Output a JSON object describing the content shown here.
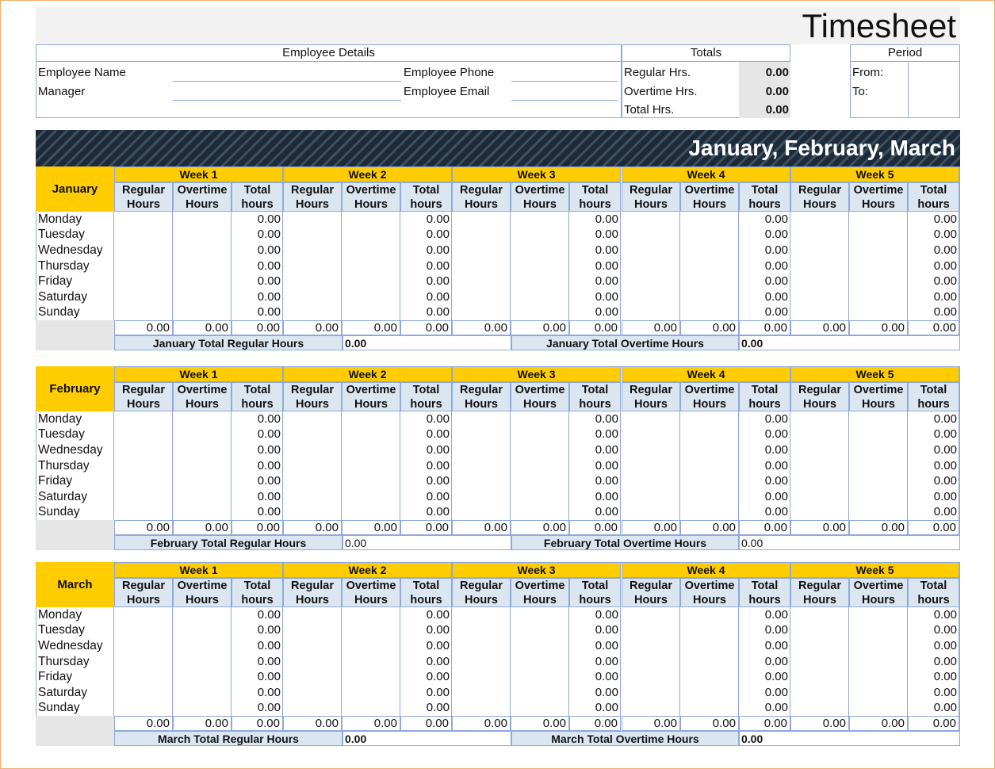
{
  "header": {
    "title": "Timesheet",
    "employee_details": {
      "heading": "Employee Details",
      "fields": [
        "Employee Name",
        "Employee Phone",
        "Manager",
        "Employee Email"
      ]
    },
    "totals": {
      "heading": "Totals",
      "rows": [
        {
          "label": "Regular Hrs.",
          "value": "0.00"
        },
        {
          "label": "Overtime Hrs.",
          "value": "0.00"
        },
        {
          "label": "Total Hrs.",
          "value": "0.00"
        }
      ]
    },
    "period": {
      "heading": "Period",
      "rows": [
        "From:",
        "To:"
      ]
    }
  },
  "banner": "January, February, March",
  "months": [
    {
      "name": "January",
      "weeks": [
        "Week 1",
        "Week 2",
        "Week 3",
        "Week 4",
        "Week 5"
      ],
      "columns": [
        [
          "Regular Hours",
          "Overtime Hours",
          "Total hours"
        ],
        [
          "Regular Hours",
          "Overtime Hours",
          "Total hours"
        ],
        [
          "Regular Hours",
          "Overtime Hours",
          "Total hours"
        ],
        [
          "Regular Hours",
          "Overtime Hours",
          "Total hours"
        ],
        [
          "Regular Hours",
          "Overtime Hours",
          "Total hours"
        ]
      ],
      "days": [
        "Monday",
        "Tuesday",
        "Wednesday",
        "Thursday",
        "Friday",
        "Saturday",
        "Sunday"
      ],
      "daily_totals": [
        [
          "0.00",
          "0.00",
          "0.00",
          "0.00",
          "0.00",
          "0.00",
          "0.00"
        ],
        [
          "0.00",
          "0.00",
          "0.00",
          "0.00",
          "0.00",
          "0.00",
          "0.00"
        ],
        [
          "0.00",
          "0.00",
          "0.00",
          "0.00",
          "0.00",
          "0.00",
          "0.00"
        ],
        [
          "0.00",
          "0.00",
          "0.00",
          "0.00",
          "0.00",
          "0.00",
          "0.00"
        ],
        [
          "0.00",
          "0.00",
          "0.00",
          "0.00",
          "0.00",
          "0.00",
          "0.00"
        ]
      ],
      "week_sums": [
        [
          "0.00",
          "0.00",
          "0.00"
        ],
        [
          "0.00",
          "0.00",
          "0.00"
        ],
        [
          "0.00",
          "0.00",
          "0.00"
        ],
        [
          "0.00",
          "0.00",
          "0.00"
        ],
        [
          "0.00",
          "0.00",
          "0.00"
        ]
      ],
      "regular_total_label": "January Total Regular Hours",
      "regular_total": "0.00",
      "overtime_total_label": "January Total Overtime Hours",
      "overtime_total": "0.00"
    },
    {
      "name": "February",
      "weeks": [
        "Week 1",
        "Week 2",
        "Week 3",
        "Week 4",
        "Week 5"
      ],
      "columns": [
        [
          "Regular Hours",
          "Overtime Hours",
          "Total hours"
        ],
        [
          "Regular Hours",
          "Overtime Hours",
          "Total hours"
        ],
        [
          "Regular Hours",
          "Overtime Hours",
          "Total hours"
        ],
        [
          "Regular Hours",
          "Overtime Hours",
          "Total hours"
        ],
        [
          "Regular Hours",
          "Overtime Hours",
          "Total hours"
        ]
      ],
      "days": [
        "Monday",
        "Tuesday",
        "Wednesday",
        "Thursday",
        "Friday",
        "Saturday",
        "Sunday"
      ],
      "daily_totals": [
        [
          "0.00",
          "0.00",
          "0.00",
          "0.00",
          "0.00",
          "0.00",
          "0.00"
        ],
        [
          "0.00",
          "0.00",
          "0.00",
          "0.00",
          "0.00",
          "0.00",
          "0.00"
        ],
        [
          "0.00",
          "0.00",
          "0.00",
          "0.00",
          "0.00",
          "0.00",
          "0.00"
        ],
        [
          "0.00",
          "0.00",
          "0.00",
          "0.00",
          "0.00",
          "0.00",
          "0.00"
        ],
        [
          "0.00",
          "0.00",
          "0.00",
          "0.00",
          "0.00",
          "0.00",
          "0.00"
        ]
      ],
      "week_sums": [
        [
          "0.00",
          "0.00",
          "0.00"
        ],
        [
          "0.00",
          "0.00",
          "0.00"
        ],
        [
          "0.00",
          "0.00",
          "0.00"
        ],
        [
          "0.00",
          "0.00",
          "0.00"
        ],
        [
          "0.00",
          "0.00",
          "0.00"
        ]
      ],
      "regular_total_label": "February Total Regular Hours",
      "regular_total": "0.00",
      "overtime_total_label": "February Total Overtime Hours",
      "overtime_total": "0.00"
    },
    {
      "name": "March",
      "weeks": [
        "Week 1",
        "Week 2",
        "Week 3",
        "Week 4",
        "Week 5"
      ],
      "columns": [
        [
          "Regular Hours",
          "Overtime Hours",
          "Total hours"
        ],
        [
          "Regular Hours",
          "Overtime Hours",
          "Total hours"
        ],
        [
          "Regular Hours",
          "Overtime Hours",
          "Total hours"
        ],
        [
          "Regular Hours",
          "Overtime Hours",
          "Total hours"
        ],
        [
          "Regular Hours",
          "Overtime Hours",
          "Total hours"
        ]
      ],
      "days": [
        "Monday",
        "Tuesday",
        "Wednesday",
        "Thursday",
        "Friday",
        "Saturday",
        "Sunday"
      ],
      "daily_totals": [
        [
          "0.00",
          "0.00",
          "0.00",
          "0.00",
          "0.00",
          "0.00",
          "0.00"
        ],
        [
          "0.00",
          "0.00",
          "0.00",
          "0.00",
          "0.00",
          "0.00",
          "0.00"
        ],
        [
          "0.00",
          "0.00",
          "0.00",
          "0.00",
          "0.00",
          "0.00",
          "0.00"
        ],
        [
          "0.00",
          "0.00",
          "0.00",
          "0.00",
          "0.00",
          "0.00",
          "0.00"
        ],
        [
          "0.00",
          "0.00",
          "0.00",
          "0.00",
          "0.00",
          "0.00",
          "0.00"
        ]
      ],
      "week_sums": [
        [
          "0.00",
          "0.00",
          "0.00"
        ],
        [
          "0.00",
          "0.00",
          "0.00"
        ],
        [
          "0.00",
          "0.00",
          "0.00"
        ],
        [
          "0.00",
          "0.00",
          "0.00"
        ],
        [
          "0.00",
          "0.00",
          "0.00"
        ]
      ],
      "regular_total_label": "March Total Regular Hours",
      "regular_total": "0.00",
      "overtime_total_label": "March Total Overtime Hours",
      "overtime_total": "0.00"
    }
  ]
}
